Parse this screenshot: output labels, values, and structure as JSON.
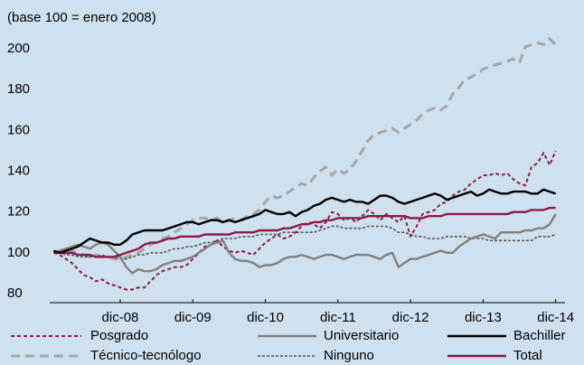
{
  "chart_data": {
    "type": "line",
    "annotation": "(base 100 = enero 2008)",
    "categories": [
      null,
      null,
      null,
      null,
      null,
      null,
      null,
      null,
      null,
      null,
      null,
      "dic-08",
      null,
      null,
      null,
      null,
      null,
      null,
      null,
      null,
      null,
      null,
      null,
      "dic-09",
      null,
      null,
      null,
      null,
      null,
      null,
      null,
      null,
      null,
      null,
      null,
      "dic-10",
      null,
      null,
      null,
      null,
      null,
      null,
      null,
      null,
      null,
      null,
      null,
      "dic-11",
      null,
      null,
      null,
      null,
      null,
      null,
      null,
      null,
      null,
      null,
      null,
      "dic-12",
      null,
      null,
      null,
      null,
      null,
      null,
      null,
      null,
      null,
      null,
      null,
      "dic-13",
      null,
      null,
      null,
      null,
      null,
      null,
      null,
      null,
      null,
      null,
      null,
      "dic-14"
    ],
    "ylim": [
      76,
      206
    ],
    "yticks": [
      80,
      100,
      120,
      140,
      160,
      180,
      200
    ],
    "grid": false,
    "series": [
      {
        "name": "Posgrado",
        "color": "#8b1a4a",
        "dash": "short",
        "values": [
          100,
          99,
          97,
          95,
          92,
          89,
          88,
          86,
          87,
          85,
          84,
          83,
          82,
          82,
          83,
          83,
          86,
          89,
          91,
          92,
          93,
          93,
          94,
          97,
          100,
          103,
          104,
          106,
          103,
          101,
          100,
          101,
          100,
          99,
          102,
          105,
          107,
          109,
          107,
          108,
          110,
          113,
          115,
          114,
          112,
          115,
          120,
          119,
          116,
          117,
          115,
          118,
          121,
          119,
          116,
          119,
          117,
          115,
          118,
          108,
          113,
          119,
          120,
          121,
          124,
          125,
          128,
          130,
          131,
          134,
          136,
          138,
          138,
          139,
          138,
          139,
          136,
          134,
          133,
          142,
          144,
          149,
          143,
          150
        ]
      },
      {
        "name": "Universitario",
        "color": "#808080",
        "dash": "solid",
        "values": [
          100,
          101,
          102,
          103,
          104,
          103,
          102,
          104,
          105,
          104,
          101,
          98,
          93,
          90,
          92,
          91,
          91,
          92,
          94,
          95,
          96,
          96,
          97,
          98,
          100,
          102,
          104,
          105,
          106,
          100,
          97,
          96,
          96,
          95,
          93,
          94,
          94,
          95,
          97,
          98,
          98,
          99,
          98,
          97,
          98,
          99,
          99,
          98,
          97,
          98,
          99,
          99,
          99,
          98,
          97,
          99,
          100,
          93,
          95,
          97,
          97,
          98,
          99,
          100,
          101,
          100,
          100,
          103,
          105,
          107,
          108,
          109,
          108,
          107,
          110,
          110,
          110,
          110,
          111,
          111,
          112,
          112,
          114,
          119
        ]
      },
      {
        "name": "Bachiller",
        "color": "#000000",
        "dash": "solid",
        "values": [
          101,
          100,
          101,
          102,
          103,
          105,
          107,
          106,
          105,
          105,
          104,
          104,
          106,
          109,
          110,
          111,
          111,
          111,
          111,
          112,
          113,
          114,
          115,
          115,
          114,
          115,
          116,
          116,
          115,
          116,
          115,
          116,
          117,
          118,
          119,
          121,
          120,
          119,
          119,
          120,
          118,
          120,
          121,
          123,
          124,
          126,
          127,
          126,
          125,
          126,
          125,
          125,
          124,
          126,
          128,
          128,
          127,
          125,
          124,
          125,
          126,
          127,
          128,
          129,
          128,
          126,
          127,
          128,
          129,
          130,
          128,
          129,
          131,
          130,
          129,
          129,
          130,
          130,
          130,
          129,
          129,
          131,
          130,
          129
        ]
      },
      {
        "name": "Técnico-tecnólogo",
        "color": "#a6a6a6",
        "dash": "long",
        "values": [
          100,
          101,
          102,
          101,
          100,
          99,
          98,
          99,
          98,
          98,
          97,
          97,
          98,
          99,
          100,
          102,
          104,
          105,
          107,
          108,
          110,
          112,
          114,
          116,
          117,
          117,
          116,
          117,
          115,
          116,
          117,
          116,
          118,
          119,
          121,
          125,
          128,
          127,
          128,
          130,
          132,
          134,
          133,
          137,
          140,
          142,
          138,
          141,
          139,
          141,
          145,
          150,
          155,
          158,
          159,
          160,
          161,
          159,
          161,
          163,
          165,
          168,
          170,
          171,
          170,
          172,
          178,
          181,
          185,
          186,
          188,
          190,
          191,
          192,
          193,
          194,
          195,
          193,
          201,
          202,
          203,
          202,
          205,
          202
        ]
      },
      {
        "name": "Ninguno",
        "color": "#555555",
        "dash": "dot",
        "values": [
          100,
          100,
          99,
          99,
          98,
          98,
          98,
          98,
          99,
          98,
          98,
          97,
          97,
          98,
          99,
          99,
          100,
          100,
          100,
          101,
          102,
          102,
          103,
          103,
          104,
          105,
          105,
          106,
          107,
          107,
          107,
          108,
          108,
          108,
          109,
          109,
          109,
          109,
          110,
          110,
          110,
          110,
          110,
          110,
          111,
          112,
          113,
          113,
          112,
          112,
          112,
          112,
          113,
          113,
          113,
          113,
          112,
          110,
          110,
          109,
          108,
          108,
          107,
          107,
          107,
          108,
          108,
          108,
          108,
          107,
          107,
          107,
          106,
          106,
          106,
          106,
          106,
          106,
          106,
          106,
          108,
          108,
          108,
          109
        ]
      },
      {
        "name": "Total",
        "color": "#8b1a4a",
        "dash": "solid",
        "values": [
          100,
          100,
          100,
          100,
          99,
          99,
          99,
          98,
          98,
          98,
          98,
          99,
          100,
          101,
          102,
          104,
          105,
          105,
          106,
          107,
          107,
          108,
          108,
          108,
          108,
          109,
          109,
          109,
          109,
          109,
          110,
          110,
          110,
          110,
          111,
          111,
          111,
          111,
          112,
          112,
          113,
          114,
          114,
          115,
          115,
          116,
          116,
          117,
          117,
          117,
          117,
          117,
          118,
          118,
          118,
          118,
          118,
          118,
          118,
          117,
          117,
          117,
          118,
          118,
          118,
          119,
          119,
          119,
          119,
          119,
          119,
          119,
          119,
          119,
          119,
          119,
          120,
          120,
          120,
          121,
          121,
          121,
          122,
          122
        ]
      }
    ]
  }
}
